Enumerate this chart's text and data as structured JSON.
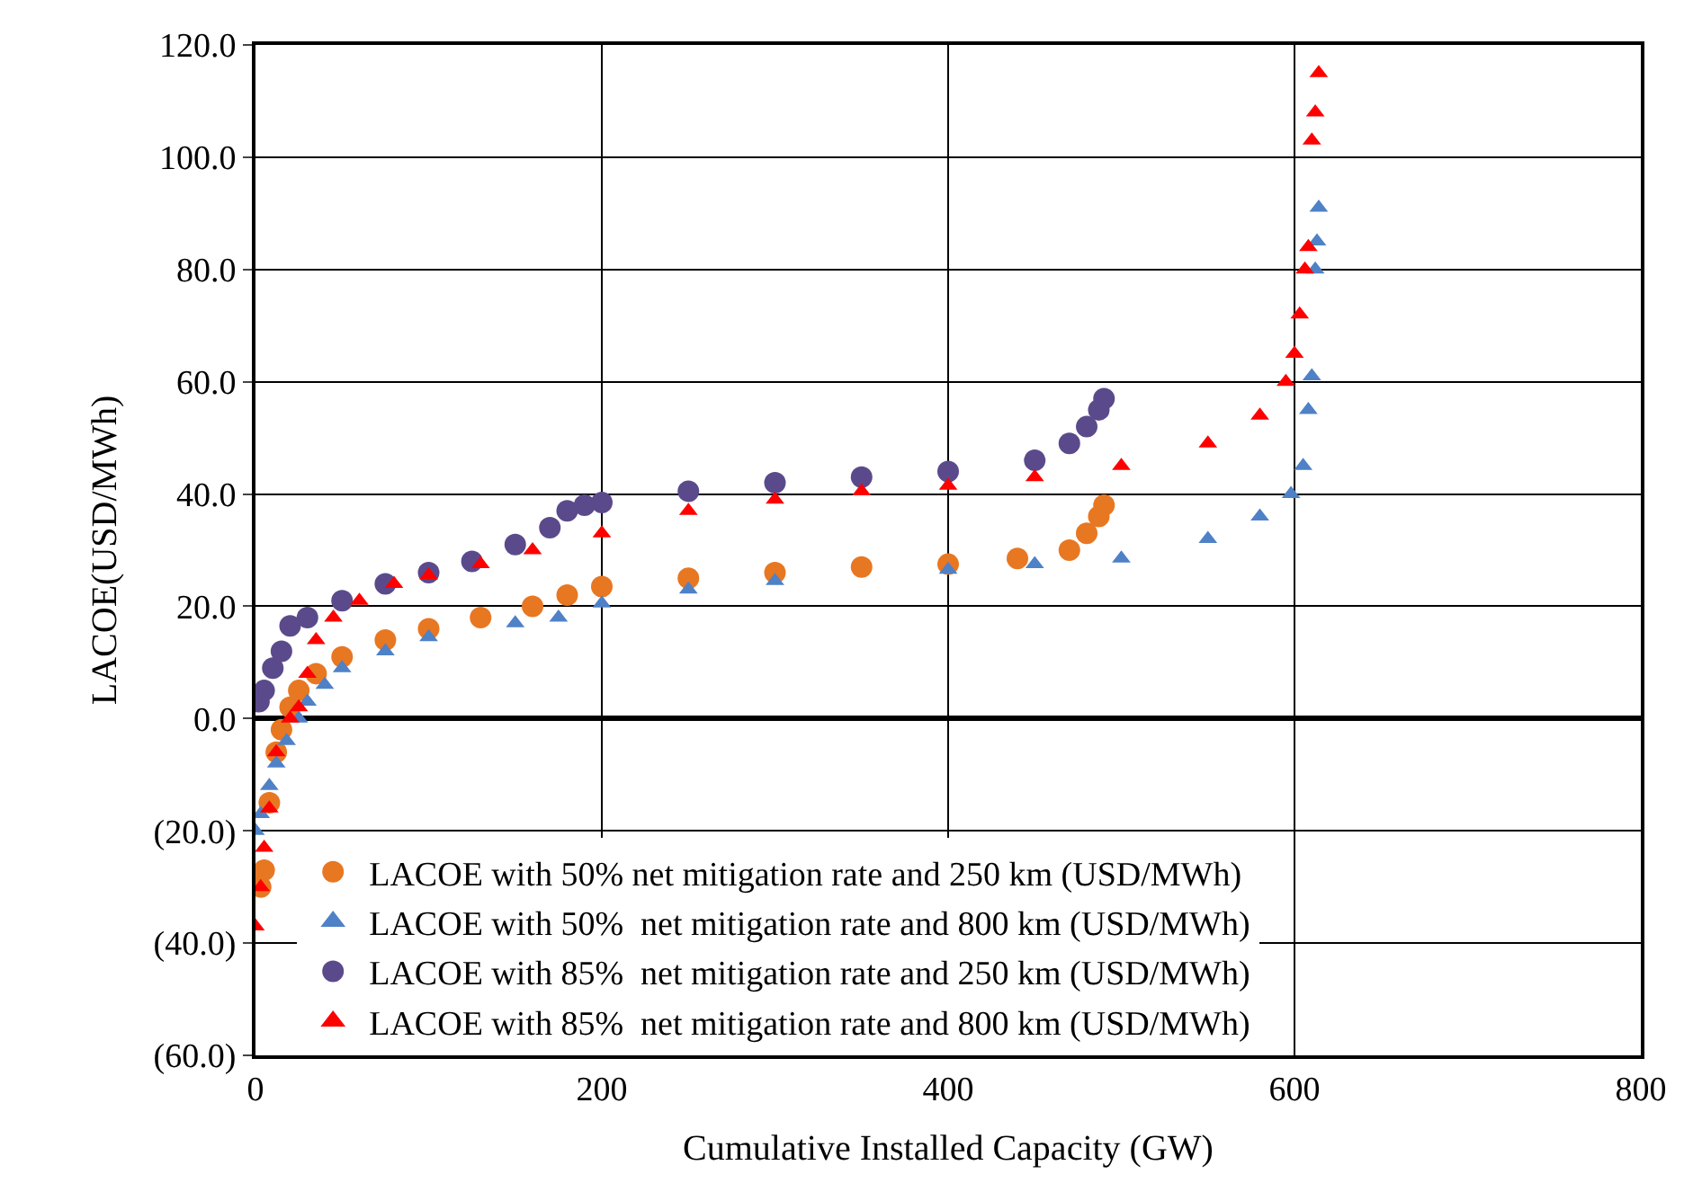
{
  "chart_data": {
    "type": "scatter",
    "xlabel": "Cumulative Installed Capacity (GW)",
    "ylabel": "LACOE(USD/MWh)",
    "xlim": [
      0,
      800
    ],
    "xticks": [
      0,
      200,
      400,
      600,
      800
    ],
    "ylim": [
      -60,
      120
    ],
    "yticks": [
      {
        "value": -60,
        "label": "(60.0)"
      },
      {
        "value": -40,
        "label": "(40.0)"
      },
      {
        "value": -20,
        "label": "(20.0)"
      },
      {
        "value": 0,
        "label": "0.0"
      },
      {
        "value": 20,
        "label": "20.0"
      },
      {
        "value": 40,
        "label": "40.0"
      },
      {
        "value": 60,
        "label": "60.0"
      },
      {
        "value": 80,
        "label": "80.0"
      },
      {
        "value": 100,
        "label": "100.0"
      },
      {
        "value": 120,
        "label": "120.0"
      }
    ],
    "grid": true,
    "legend": "bottom left",
    "series": [
      {
        "name": "LACOE with 50% net mitigation rate and 250 km (USD/MWh)",
        "color": "#e87722",
        "marker": "circle",
        "x": [
          3,
          5,
          8,
          12,
          15,
          20,
          25,
          35,
          50,
          75,
          100,
          130,
          160,
          180,
          200,
          250,
          300,
          350,
          400,
          440,
          470,
          480,
          487,
          490
        ],
        "values": [
          -30,
          -27,
          -15,
          -6,
          -2,
          2,
          5,
          8,
          11,
          14,
          16,
          18,
          20,
          22,
          23.5,
          25,
          26,
          27,
          27.5,
          28.5,
          30,
          33,
          36,
          38
        ]
      },
      {
        "name": "LACOE with 50%  net mitigation rate and 800 km (USD/MWh)",
        "color": "#4f81c7",
        "marker": "triangle",
        "x": [
          0,
          3,
          8,
          12,
          18,
          25,
          30,
          40,
          50,
          75,
          100,
          150,
          175,
          200,
          250,
          300,
          400,
          450,
          500,
          550,
          580,
          598,
          605,
          608,
          610,
          612,
          613,
          614
        ],
        "values": [
          -20,
          -17,
          -12,
          -8,
          -4,
          0,
          3,
          6,
          9,
          12,
          14.5,
          17,
          18,
          20.5,
          23,
          24.5,
          26.5,
          27.5,
          28.5,
          32,
          36,
          40,
          45,
          55,
          61,
          80,
          85,
          91
        ]
      },
      {
        "name": "LACOE with 85%  net mitigation rate and 250 km (USD/MWh)",
        "color": "#5b4a8b",
        "marker": "circle",
        "x": [
          2,
          5,
          10,
          15,
          20,
          30,
          50,
          75,
          100,
          125,
          150,
          170,
          180,
          190,
          200,
          250,
          300,
          350,
          400,
          450,
          470,
          480,
          487,
          490
        ],
        "values": [
          3,
          5,
          9,
          12,
          16.5,
          18,
          21,
          24,
          26,
          28,
          31,
          34,
          37,
          38,
          38.5,
          40.5,
          42,
          43,
          44,
          46,
          49,
          52,
          55,
          57
        ]
      },
      {
        "name": "LACOE with 85%  net mitigation rate and 800 km (USD/MWh)",
        "color": "#ff0000",
        "marker": "triangle",
        "x": [
          0,
          3,
          5,
          8,
          12,
          20,
          25,
          30,
          35,
          45,
          60,
          80,
          100,
          130,
          160,
          200,
          250,
          300,
          350,
          400,
          450,
          500,
          550,
          580,
          595,
          600,
          603,
          606,
          608,
          610,
          612,
          614
        ],
        "values": [
          -37,
          -30,
          -23,
          -16,
          -6,
          0,
          2,
          8,
          14,
          18,
          21,
          24,
          25.5,
          27.5,
          30,
          33,
          37,
          39,
          40.5,
          41.5,
          43,
          45,
          49,
          54,
          60,
          65,
          72,
          80,
          84,
          103,
          108,
          115
        ]
      }
    ]
  }
}
